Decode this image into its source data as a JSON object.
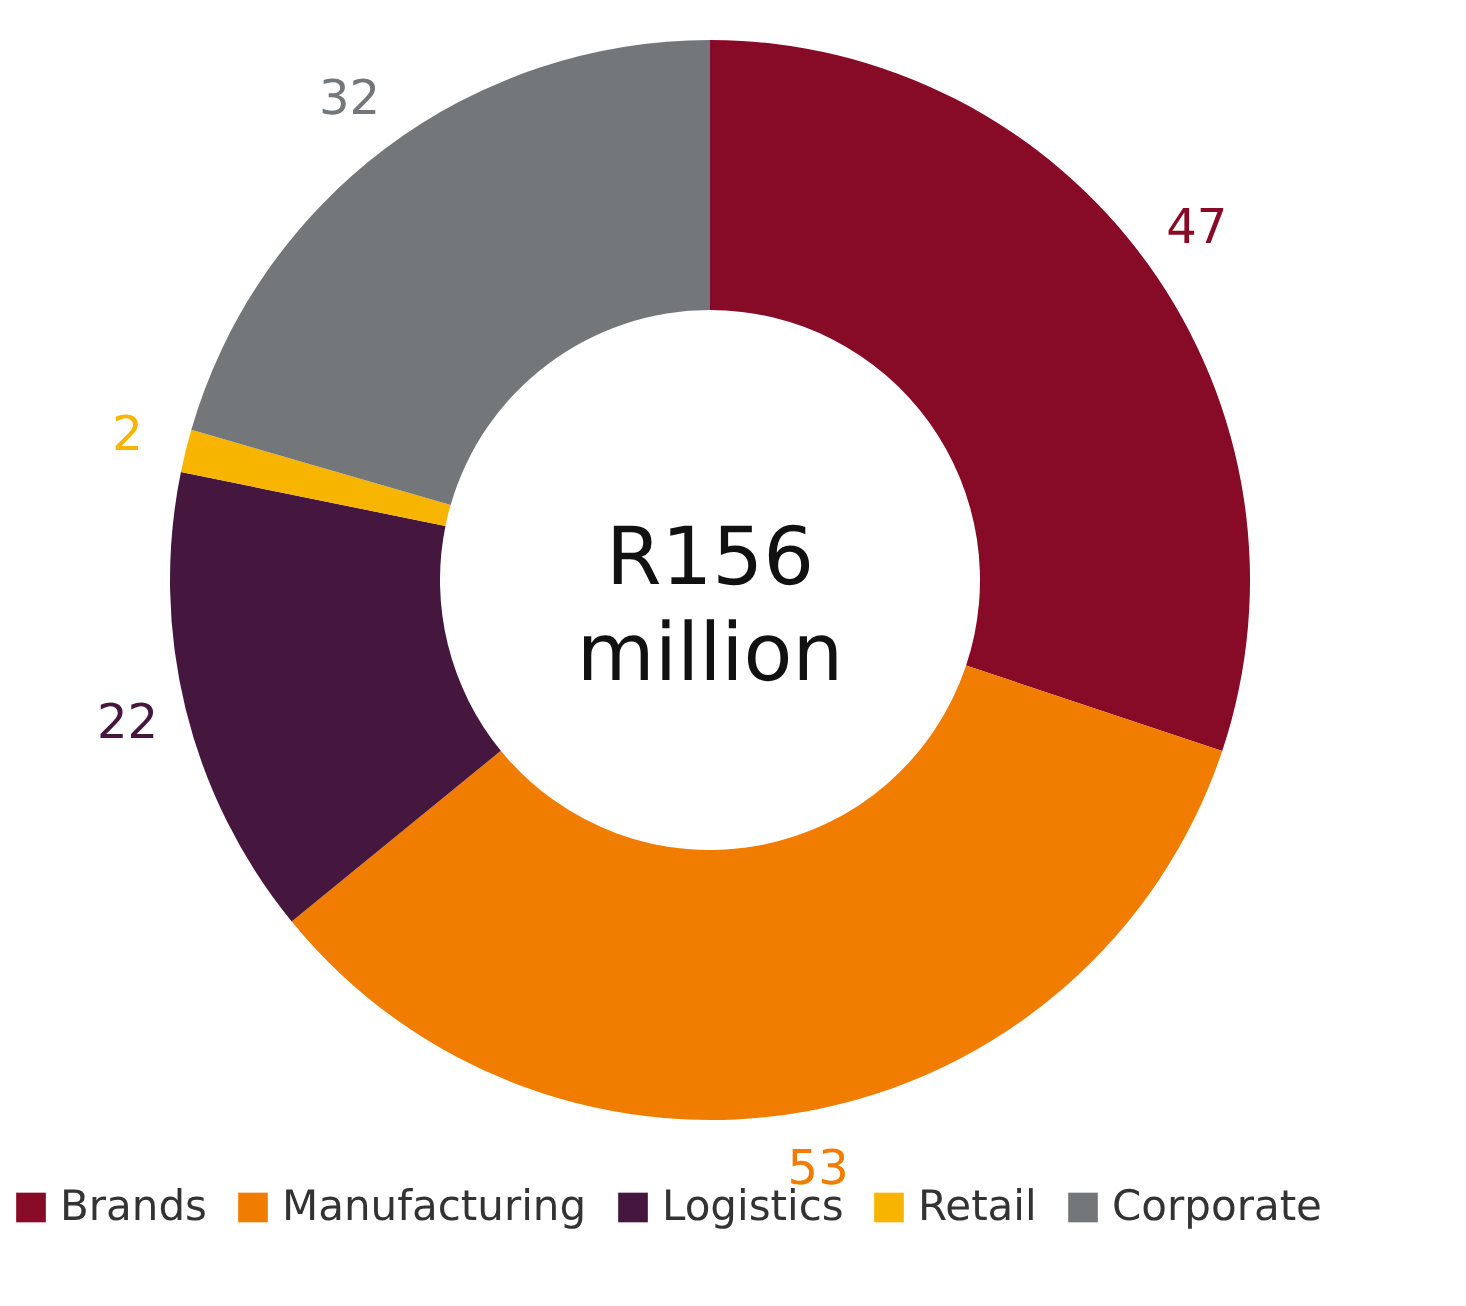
{
  "chart_data": {
    "type": "donut",
    "categories": [
      "Brands",
      "Manufacturing",
      "Logistics",
      "Retail",
      "Corporate"
    ],
    "values": [
      47,
      53,
      22,
      2,
      32
    ],
    "colors": [
      "#870a26",
      "#f07d00",
      "#45173f",
      "#f7b500",
      "#737779"
    ],
    "annotations": [
      "R156 million"
    ],
    "data_labels": true,
    "legend": "bottom"
  }
}
